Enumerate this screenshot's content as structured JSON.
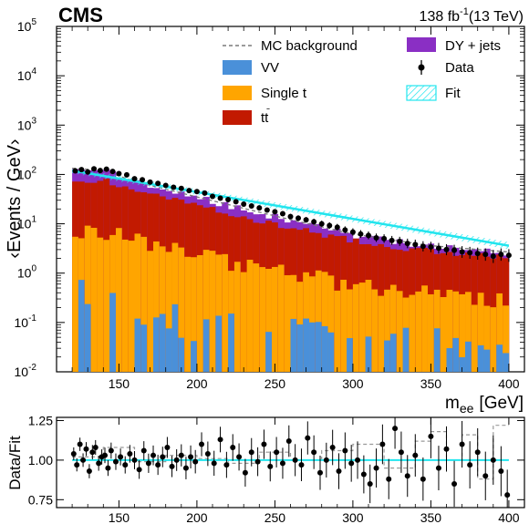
{
  "header": {
    "experiment": "CMS",
    "lumi_value": "138 fb",
    "lumi_exp": "-1",
    "energy": "(13 TeV)"
  },
  "colors": {
    "VV": "#4a90d9",
    "Single t": "#ffa500",
    "ttbar": "#c21a01",
    "DY + jets": "#8a2fc4",
    "Fit": "#22e5ee",
    "MC background": "#7a7a7a",
    "Data": "#000000"
  },
  "legend": {
    "mc": "MC background",
    "dy": "DY + jets",
    "vv": "VV",
    "data": "Data",
    "single_t": "Single t",
    "fit": "Fit",
    "tt_base": "tt",
    "tt_bar": "̄"
  },
  "chart_data": [
    {
      "type": "area",
      "title": "",
      "ylabel": "‹Events / GeV›",
      "xlabel_main": "m",
      "xlabel_sub": "ee",
      "xlabel_unit": "[GeV]",
      "xlim": [
        110,
        410
      ],
      "ylim": [
        0.01,
        100000
      ],
      "yscale": "log",
      "xticks": [
        "150",
        "200",
        "250",
        "300",
        "350",
        "400"
      ],
      "ytick_labels": [
        {
          "base": "10",
          "exp": "5"
        },
        {
          "base": "10",
          "exp": "4"
        },
        {
          "base": "10",
          "exp": "3"
        },
        {
          "base": "10",
          "exp": "2"
        },
        {
          "base": "10",
          "exp": "1"
        },
        {
          "base": "10",
          "exp": "0"
        },
        {
          "base": "10",
          "exp": "-1"
        },
        {
          "base": "10",
          "exp": "-2"
        }
      ],
      "stack_shape": {
        "x": [
          120,
          140,
          160,
          200,
          250,
          300,
          350,
          400
        ],
        "DY + jets": [
          130,
          118,
          70,
          34,
          14,
          6,
          3.5,
          2.6
        ],
        "ttbar": [
          70,
          75,
          50,
          24,
          10,
          4.5,
          2.8,
          2.0
        ],
        "Single t": [
          8,
          7,
          5,
          2.5,
          1.2,
          0.6,
          0.4,
          0.3
        ],
        "VV": [
          0.5,
          0.25,
          0.12,
          0.08,
          0.05,
          0.04,
          0.03,
          0.02
        ]
      },
      "fit": {
        "x": [
          120,
          400
        ],
        "y": [
          120,
          3.6
        ]
      },
      "data_points": {
        "x": [
          122,
          126,
          130,
          134,
          138,
          142,
          146,
          150,
          155,
          160,
          165,
          170,
          175,
          180,
          185,
          190,
          195,
          200,
          205,
          210,
          215,
          220,
          225,
          230,
          235,
          240,
          245,
          250,
          255,
          260,
          265,
          270,
          275,
          280,
          285,
          290,
          295,
          300,
          305,
          310,
          315,
          320,
          325,
          330,
          335,
          340,
          345,
          350,
          355,
          360,
          365,
          370,
          375,
          380,
          385,
          390,
          395,
          400
        ],
        "y": [
          118,
          125,
          112,
          130,
          120,
          128,
          115,
          104,
          98,
          82,
          78,
          70,
          66,
          60,
          55,
          52,
          47,
          45,
          42,
          36,
          33,
          31,
          28,
          25,
          23,
          21,
          19,
          17.5,
          16,
          14,
          13,
          12,
          11,
          10,
          9.2,
          8.5,
          7.5,
          6.8,
          6.2,
          5.8,
          5.2,
          5.0,
          4.6,
          4.4,
          4.0,
          3.8,
          3.5,
          3.4,
          3.2,
          3.0,
          2.9,
          2.7,
          2.6,
          2.5,
          2.4,
          2.2,
          2.4,
          2.3
        ]
      }
    },
    {
      "type": "scatter",
      "ylabel": "Data/Fit",
      "xlim": [
        110,
        410
      ],
      "ylim": [
        0.7,
        1.27
      ],
      "xticks": [
        "150",
        "200",
        "250",
        "300",
        "350",
        "400"
      ],
      "yticks": [
        "0.75",
        "1.00",
        "1.25"
      ],
      "reference": 1.0,
      "points": {
        "x": [
          121,
          123,
          125,
          127,
          129,
          131,
          133,
          135,
          137,
          139,
          141,
          143,
          145,
          148,
          151,
          154,
          157,
          160,
          163,
          166,
          169,
          172,
          175,
          178,
          181,
          184,
          187,
          190,
          193,
          196,
          199,
          203,
          207,
          211,
          215,
          219,
          223,
          227,
          231,
          235,
          239,
          243,
          247,
          251,
          255,
          259,
          263,
          267,
          271,
          275,
          279,
          283,
          287,
          291,
          295,
          299,
          303,
          307,
          311,
          315,
          319,
          323,
          327,
          331,
          335,
          340,
          345,
          350,
          355,
          360,
          365,
          370,
          375,
          380,
          385,
          390,
          395,
          399
        ],
        "y": [
          1.04,
          0.97,
          1.1,
          1.0,
          1.07,
          0.93,
          1.05,
          1.08,
          0.98,
          1.02,
          1.03,
          0.95,
          1.06,
          0.99,
          1.02,
          0.97,
          1.04,
          1.0,
          0.94,
          1.06,
          0.98,
          1.03,
          0.97,
          1.02,
          1.08,
          0.96,
          1.0,
          1.03,
          0.95,
          1.02,
          0.99,
          1.1,
          1.04,
          0.98,
          1.13,
          0.97,
          1.08,
          1.02,
          0.92,
          1.05,
          0.99,
          1.1,
          0.96,
          1.05,
          0.98,
          1.12,
          1.0,
          0.97,
          1.14,
          1.05,
          0.92,
          1.0,
          1.08,
          0.93,
          1.06,
          0.98,
          1.0,
          0.91,
          0.85,
          0.95,
          1.1,
          0.88,
          1.2,
          1.05,
          0.9,
          1.03,
          0.88,
          1.15,
          0.95,
          1.07,
          0.85,
          1.1,
          0.97,
          1.05,
          0.9,
          1.0,
          0.93,
          0.78
        ]
      },
      "mc_ratio": {
        "x": [
          120,
          140,
          160,
          180,
          200,
          220,
          240,
          260,
          280,
          300,
          320,
          340,
          350,
          360,
          370,
          380,
          390,
          400
        ],
        "y": [
          1.02,
          1.08,
          0.99,
          1.03,
          1.01,
          0.98,
          1.05,
          1.0,
          1.06,
          1.1,
          0.95,
          1.12,
          1.18,
          1.0,
          1.16,
          0.88,
          1.22,
          0.95
        ]
      }
    }
  ]
}
